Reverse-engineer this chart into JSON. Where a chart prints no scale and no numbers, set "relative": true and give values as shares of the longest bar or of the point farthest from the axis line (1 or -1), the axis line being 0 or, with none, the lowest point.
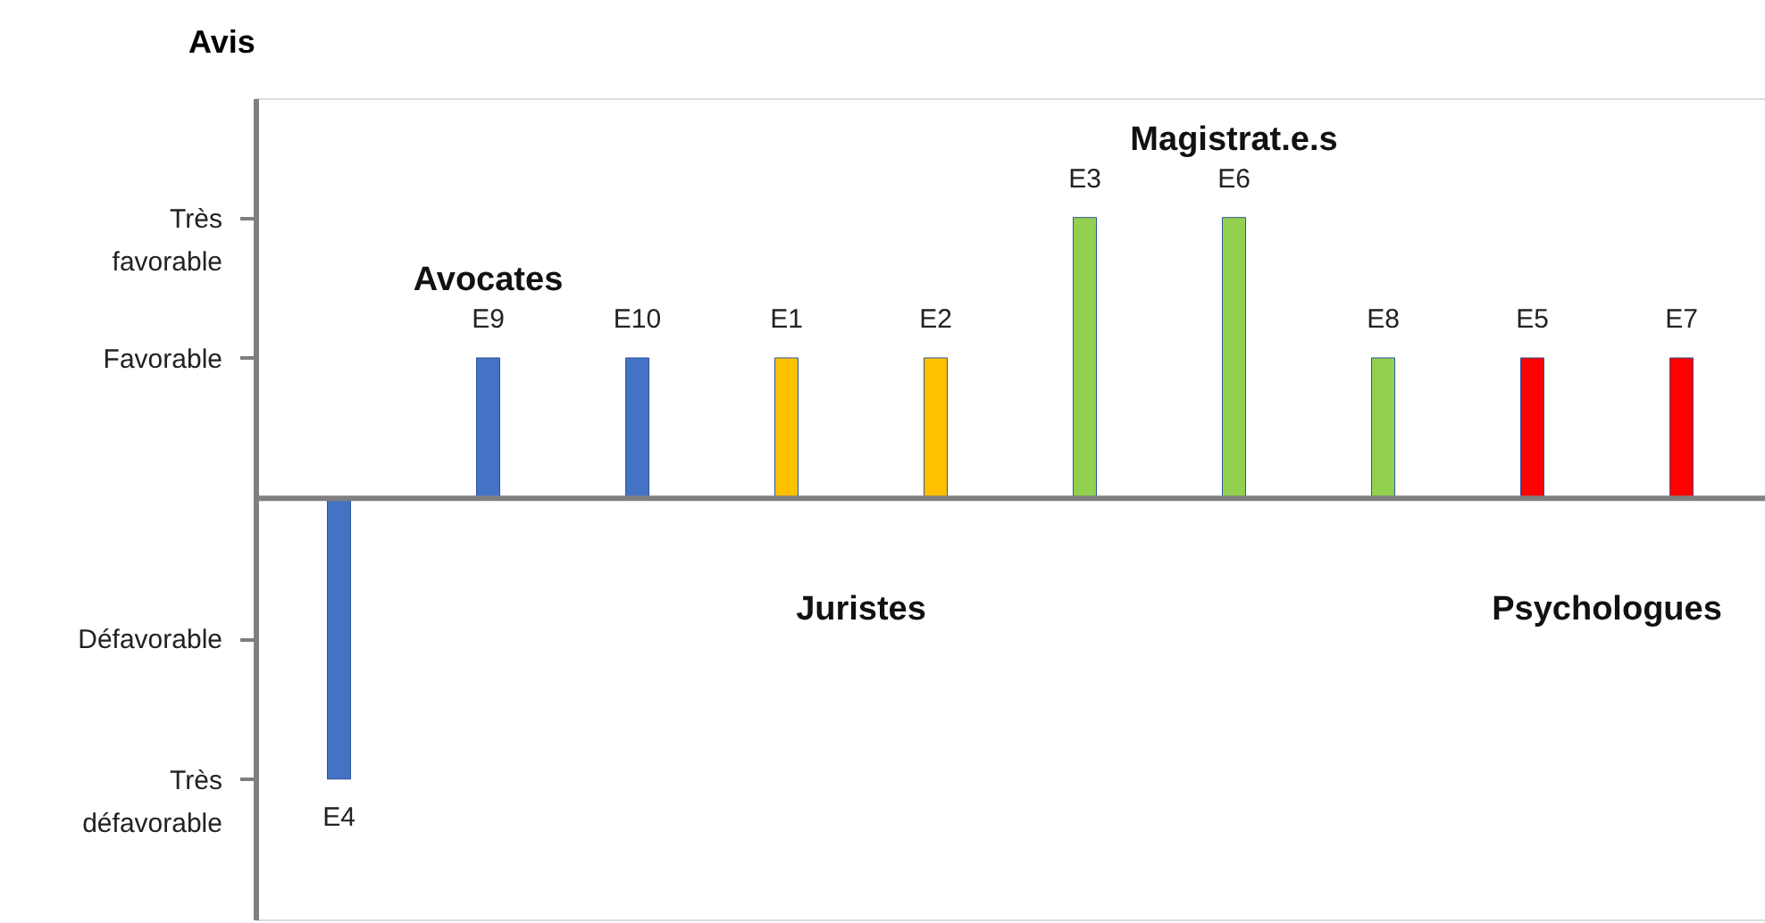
{
  "chart_data": {
    "type": "bar",
    "relative": true,
    "ylabel": "Avis",
    "categories": [
      "E4",
      "E9",
      "E10",
      "E1",
      "E2",
      "E3",
      "E6",
      "E8",
      "E5",
      "E7"
    ],
    "series": [
      {
        "name": "Avocates",
        "color": "#4472c4",
        "values": [
          -1,
          0.5,
          0.5,
          null,
          null,
          null,
          null,
          null,
          null,
          null
        ]
      },
      {
        "name": "Juristes",
        "color": "#ffc000",
        "values": [
          null,
          null,
          null,
          0.5,
          0.5,
          null,
          null,
          null,
          null,
          null
        ]
      },
      {
        "name": "Magistrat.e.s",
        "color": "#92d050",
        "values": [
          null,
          null,
          null,
          null,
          null,
          1,
          1,
          0.5,
          null,
          null
        ]
      },
      {
        "name": "Psychologues",
        "color": "#ff0000",
        "values": [
          null,
          null,
          null,
          null,
          null,
          null,
          null,
          null,
          0.5,
          0.5
        ]
      }
    ],
    "annotations": [
      "Très défavorable",
      "Défavorable",
      "Favorable",
      "Très favorable"
    ],
    "grid": false,
    "legend": false
  }
}
